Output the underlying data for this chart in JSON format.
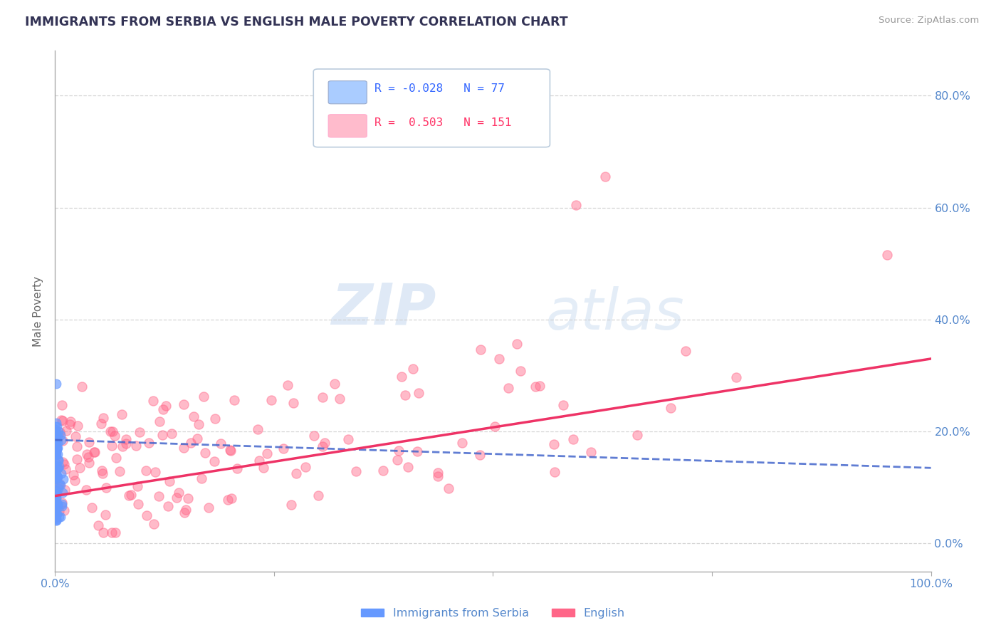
{
  "title": "IMMIGRANTS FROM SERBIA VS ENGLISH MALE POVERTY CORRELATION CHART",
  "source": "Source: ZipAtlas.com",
  "ylabel": "Male Poverty",
  "series1_label": "Immigrants from Serbia",
  "series2_label": "English",
  "series1_R": -0.028,
  "series1_N": 77,
  "series2_R": 0.503,
  "series2_N": 151,
  "series1_color": "#6699ff",
  "series2_color": "#ff6688",
  "trend1_color": "#4466cc",
  "trend2_color": "#ee3366",
  "xlim": [
    0.0,
    1.0
  ],
  "ylim": [
    -0.05,
    0.88
  ],
  "yticks": [
    0.0,
    0.2,
    0.4,
    0.6,
    0.8
  ],
  "ytick_labels": [
    "0.0%",
    "20.0%",
    "40.0%",
    "60.0%",
    "80.0%"
  ],
  "xticks": [
    0.0,
    0.25,
    0.5,
    0.75,
    1.0
  ],
  "xtick_labels": [
    "0.0%",
    "",
    "",
    "",
    "100.0%"
  ],
  "grid_color": "#cccccc",
  "background_color": "#ffffff",
  "watermark_zip": "ZIP",
  "watermark_atlas": "atlas",
  "title_color": "#333355",
  "axis_color": "#5588cc",
  "legend_box_color1": "#aaccff",
  "legend_box_color2": "#ffbbcc",
  "legend_R1_color": "#3366ff",
  "legend_R2_color": "#ff3366",
  "legend_N1_color": "#3366ff",
  "legend_N2_color": "#ff3366",
  "trend1_start_y": 0.185,
  "trend1_end_y": 0.135,
  "trend2_start_y": 0.085,
  "trend2_end_y": 0.33
}
